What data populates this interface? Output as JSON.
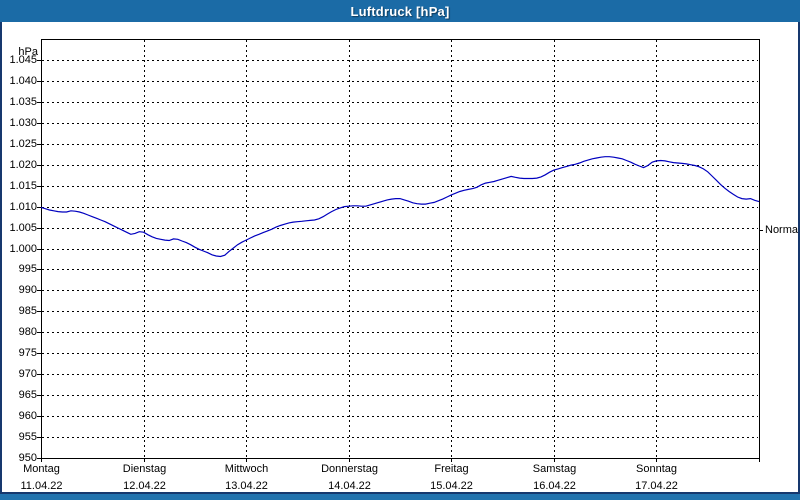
{
  "window": {
    "title": "Luftdruck [hPa]"
  },
  "colors": {
    "titlebar": "#1b6ba6",
    "window_border": "#16386e",
    "bottom_strip": "#2273ae",
    "plot_line": "#0000bf",
    "grid": "#000000",
    "background": "#ffffff",
    "text": "#000000"
  },
  "chart_data": {
    "type": "line",
    "title": "Luftdruck [hPa]",
    "grid": "dashed",
    "y_axis": {
      "unit_label": "hPa",
      "min": 950,
      "max": 1050,
      "gridline_step": 5,
      "ticks": [
        {
          "value": 1045,
          "label": "1.045"
        },
        {
          "value": 1040,
          "label": "1.040"
        },
        {
          "value": 1035,
          "label": "1.035"
        },
        {
          "value": 1030,
          "label": "1.030"
        },
        {
          "value": 1025,
          "label": "1.025"
        },
        {
          "value": 1020,
          "label": "1.020"
        },
        {
          "value": 1015,
          "label": "1.015"
        },
        {
          "value": 1010,
          "label": "1.010"
        },
        {
          "value": 1005,
          "label": "1.005"
        },
        {
          "value": 1000,
          "label": "1.000"
        },
        {
          "value": 995,
          "label": "995"
        },
        {
          "value": 990,
          "label": "990"
        },
        {
          "value": 985,
          "label": "985"
        },
        {
          "value": 980,
          "label": "980"
        },
        {
          "value": 975,
          "label": "975"
        },
        {
          "value": 970,
          "label": "970"
        },
        {
          "value": 965,
          "label": "965"
        },
        {
          "value": 960,
          "label": "960"
        },
        {
          "value": 955,
          "label": "955"
        },
        {
          "value": 950,
          "label": "950"
        }
      ]
    },
    "x_axis": {
      "total_hours": 168,
      "days": [
        {
          "name": "Montag",
          "date": "11.04.22"
        },
        {
          "name": "Dienstag",
          "date": "12.04.22"
        },
        {
          "name": "Mittwoch",
          "date": "13.04.22"
        },
        {
          "name": "Donnerstag",
          "date": "14.04.22"
        },
        {
          "name": "Freitag",
          "date": "15.04.22"
        },
        {
          "name": "Samstag",
          "date": "16.04.22"
        },
        {
          "name": "Sonntag",
          "date": "17.04.22"
        }
      ]
    },
    "annotation": {
      "label": "Normal",
      "value_hpa": 1004.3
    },
    "series": [
      {
        "name": "Luftdruck",
        "color": "#0000bf",
        "points": [
          [
            0,
            1009.8
          ],
          [
            1,
            1009.5
          ],
          [
            2,
            1009.2
          ],
          [
            3,
            1009.0
          ],
          [
            4,
            1008.8
          ],
          [
            5,
            1008.7
          ],
          [
            6,
            1008.7
          ],
          [
            7,
            1009.0
          ],
          [
            8,
            1008.9
          ],
          [
            9,
            1008.7
          ],
          [
            10,
            1008.4
          ],
          [
            11,
            1008.0
          ],
          [
            12,
            1007.6
          ],
          [
            13,
            1007.2
          ],
          [
            14,
            1006.8
          ],
          [
            15,
            1006.4
          ],
          [
            16,
            1005.9
          ],
          [
            17,
            1005.4
          ],
          [
            18,
            1004.9
          ],
          [
            19,
            1004.4
          ],
          [
            20,
            1003.9
          ],
          [
            21,
            1003.4
          ],
          [
            22,
            1003.6
          ],
          [
            23,
            1004.0
          ],
          [
            24,
            1003.9
          ],
          [
            25,
            1003.3
          ],
          [
            26,
            1002.8
          ],
          [
            27,
            1002.4
          ],
          [
            28,
            1002.2
          ],
          [
            29,
            1002.0
          ],
          [
            30,
            1001.9
          ],
          [
            31,
            1002.3
          ],
          [
            32,
            1002.2
          ],
          [
            33,
            1001.8
          ],
          [
            34,
            1001.4
          ],
          [
            35,
            1000.9
          ],
          [
            36,
            1000.3
          ],
          [
            37,
            999.8
          ],
          [
            38,
            999.4
          ],
          [
            39,
            999.0
          ],
          [
            40,
            998.5
          ],
          [
            41,
            998.2
          ],
          [
            42,
            998.1
          ],
          [
            43,
            998.4
          ],
          [
            44,
            999.3
          ],
          [
            45,
            1000.1
          ],
          [
            46,
            1000.9
          ],
          [
            47,
            1001.5
          ],
          [
            48,
            1002.0
          ],
          [
            49,
            1002.5
          ],
          [
            50,
            1003.0
          ],
          [
            51,
            1003.4
          ],
          [
            52,
            1003.8
          ],
          [
            53,
            1004.2
          ],
          [
            54,
            1004.6
          ],
          [
            55,
            1005.1
          ],
          [
            56,
            1005.5
          ],
          [
            57,
            1005.8
          ],
          [
            58,
            1006.1
          ],
          [
            59,
            1006.3
          ],
          [
            60,
            1006.4
          ],
          [
            61,
            1006.5
          ],
          [
            62,
            1006.6
          ],
          [
            63,
            1006.7
          ],
          [
            64,
            1006.8
          ],
          [
            65,
            1007.1
          ],
          [
            66,
            1007.6
          ],
          [
            67,
            1008.2
          ],
          [
            68,
            1008.8
          ],
          [
            69,
            1009.3
          ],
          [
            70,
            1009.7
          ],
          [
            71,
            1010.0
          ],
          [
            72,
            1010.1
          ],
          [
            73,
            1010.2
          ],
          [
            74,
            1010.2
          ],
          [
            75,
            1010.1
          ],
          [
            76,
            1010.1
          ],
          [
            77,
            1010.4
          ],
          [
            78,
            1010.7
          ],
          [
            79,
            1011.0
          ],
          [
            80,
            1011.3
          ],
          [
            81,
            1011.6
          ],
          [
            82,
            1011.8
          ],
          [
            83,
            1011.9
          ],
          [
            84,
            1011.9
          ],
          [
            85,
            1011.6
          ],
          [
            86,
            1011.3
          ],
          [
            87,
            1010.9
          ],
          [
            88,
            1010.7
          ],
          [
            89,
            1010.6
          ],
          [
            90,
            1010.6
          ],
          [
            91,
            1010.8
          ],
          [
            92,
            1011.0
          ],
          [
            93,
            1011.4
          ],
          [
            94,
            1011.8
          ],
          [
            95,
            1012.3
          ],
          [
            96,
            1012.8
          ],
          [
            97,
            1013.2
          ],
          [
            98,
            1013.6
          ],
          [
            99,
            1013.9
          ],
          [
            100,
            1014.1
          ],
          [
            101,
            1014.3
          ],
          [
            102,
            1014.6
          ],
          [
            103,
            1015.2
          ],
          [
            104,
            1015.6
          ],
          [
            105,
            1015.8
          ],
          [
            106,
            1016.0
          ],
          [
            107,
            1016.3
          ],
          [
            108,
            1016.6
          ],
          [
            109,
            1016.9
          ],
          [
            110,
            1017.2
          ],
          [
            111,
            1017.0
          ],
          [
            112,
            1016.8
          ],
          [
            113,
            1016.7
          ],
          [
            114,
            1016.7
          ],
          [
            115,
            1016.7
          ],
          [
            116,
            1016.8
          ],
          [
            117,
            1017.1
          ],
          [
            118,
            1017.6
          ],
          [
            119,
            1018.2
          ],
          [
            120,
            1018.7
          ],
          [
            121,
            1019.0
          ],
          [
            122,
            1019.3
          ],
          [
            123,
            1019.6
          ],
          [
            124,
            1019.9
          ],
          [
            125,
            1020.1
          ],
          [
            126,
            1020.4
          ],
          [
            127,
            1020.8
          ],
          [
            128,
            1021.1
          ],
          [
            129,
            1021.4
          ],
          [
            130,
            1021.6
          ],
          [
            131,
            1021.8
          ],
          [
            132,
            1021.9
          ],
          [
            133,
            1021.9
          ],
          [
            134,
            1021.8
          ],
          [
            135,
            1021.6
          ],
          [
            136,
            1021.4
          ],
          [
            137,
            1021.0
          ],
          [
            138,
            1020.6
          ],
          [
            139,
            1020.1
          ],
          [
            140,
            1019.7
          ],
          [
            141,
            1019.3
          ],
          [
            142,
            1019.8
          ],
          [
            143,
            1020.6
          ],
          [
            144,
            1020.9
          ],
          [
            145,
            1021.0
          ],
          [
            146,
            1020.9
          ],
          [
            147,
            1020.7
          ],
          [
            148,
            1020.5
          ],
          [
            149,
            1020.4
          ],
          [
            150,
            1020.3
          ],
          [
            151,
            1020.2
          ],
          [
            152,
            1020.0
          ],
          [
            153,
            1019.8
          ],
          [
            154,
            1019.5
          ],
          [
            155,
            1019.0
          ],
          [
            156,
            1018.3
          ],
          [
            157,
            1017.3
          ],
          [
            158,
            1016.3
          ],
          [
            159,
            1015.3
          ],
          [
            160,
            1014.4
          ],
          [
            161,
            1013.6
          ],
          [
            162,
            1012.9
          ],
          [
            163,
            1012.3
          ],
          [
            164,
            1011.9
          ],
          [
            165,
            1011.8
          ],
          [
            166,
            1011.9
          ],
          [
            167,
            1011.5
          ],
          [
            168,
            1011.2
          ]
        ]
      }
    ]
  }
}
